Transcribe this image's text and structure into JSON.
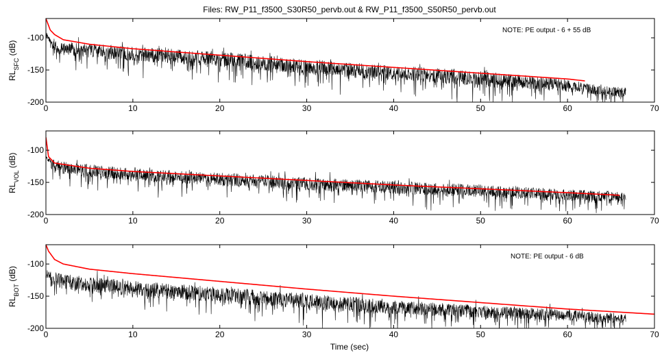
{
  "figure": {
    "title": "Files: RW_P11_f3500_S30R50_pervb.out & RW_P11_f3500_S50R50_pervb.out",
    "xlabel": "Time (sec)"
  },
  "colors": {
    "noisy_series": "#000000",
    "smooth_series": "#ff0000",
    "axes": "#000000",
    "background": "#ffffff"
  },
  "chart_data": [
    {
      "type": "line",
      "ylabel_main": "RL",
      "ylabel_sub": "SFC",
      "ylabel_unit": "(dB)",
      "note": "NOTE: PE output - 6 + 55 dB",
      "xlim": [
        0,
        70
      ],
      "ylim": [
        -200,
        -70
      ],
      "xticks": [
        "0",
        "10",
        "20",
        "30",
        "40",
        "50",
        "60",
        "70"
      ],
      "yticks": [
        "-100",
        "-150",
        "-200"
      ],
      "series": [
        {
          "color": "#ff0000",
          "x": [
            0,
            0.5,
            1,
            2,
            5,
            10,
            20,
            30,
            40,
            50,
            60,
            62
          ],
          "y": [
            -70,
            -88,
            -95,
            -103,
            -110,
            -117,
            -127,
            -137,
            -146,
            -155,
            -164,
            -167
          ]
        },
        {
          "color": "#000000",
          "x_end": 66.7,
          "envelope_x": [
            0,
            0.5,
            1,
            5,
            10,
            20,
            30,
            40,
            50,
            60,
            62,
            64,
            66.7
          ],
          "envelope_mean": [
            -100,
            -110,
            -115,
            -120,
            -125,
            -133,
            -145,
            -155,
            -163,
            -174,
            -178,
            -183,
            -185
          ],
          "envelope_spread": [
            10,
            10,
            10,
            11,
            11,
            12,
            12,
            12,
            12,
            10,
            8,
            8,
            8
          ]
        }
      ]
    },
    {
      "type": "line",
      "ylabel_main": "RL",
      "ylabel_sub": "VOL",
      "ylabel_unit": "(dB)",
      "note": "",
      "xlim": [
        0,
        70
      ],
      "ylim": [
        -200,
        -70
      ],
      "xticks": [
        "0",
        "10",
        "20",
        "30",
        "40",
        "50",
        "60",
        "70"
      ],
      "yticks": [
        "-100",
        "-150",
        "-200"
      ],
      "series": [
        {
          "color": "#ff0000",
          "x": [
            0,
            0.3,
            1,
            5,
            10,
            20,
            30,
            40,
            50,
            60,
            66
          ],
          "y": [
            -80,
            -110,
            -120,
            -128,
            -133,
            -140,
            -147,
            -154,
            -160,
            -166,
            -170
          ]
        },
        {
          "color": "#000000",
          "x_end": 66.7,
          "envelope_x": [
            0,
            1,
            5,
            10,
            20,
            30,
            40,
            50,
            60,
            66.7
          ],
          "envelope_mean": [
            -120,
            -125,
            -132,
            -138,
            -145,
            -152,
            -158,
            -163,
            -170,
            -172
          ],
          "envelope_spread": [
            10,
            10,
            10,
            10,
            10,
            10,
            10,
            10,
            9,
            8
          ]
        }
      ]
    },
    {
      "type": "line",
      "ylabel_main": "RL",
      "ylabel_sub": "BOT",
      "ylabel_unit": "(dB)",
      "note": "NOTE: PE output - 6 dB",
      "xlim": [
        0,
        70
      ],
      "ylim": [
        -200,
        -70
      ],
      "xticks": [
        "0",
        "10",
        "20",
        "30",
        "40",
        "50",
        "60",
        "70"
      ],
      "yticks": [
        "-100",
        "-150",
        "-200"
      ],
      "series": [
        {
          "color": "#ff0000",
          "x": [
            0,
            0.3,
            1,
            2,
            5,
            10,
            20,
            30,
            40,
            50,
            60,
            70
          ],
          "y": [
            -70,
            -80,
            -93,
            -100,
            -108,
            -115,
            -127,
            -139,
            -150,
            -160,
            -170,
            -178
          ]
        },
        {
          "color": "#000000",
          "x_end": 66.7,
          "envelope_x": [
            0,
            1,
            5,
            10,
            20,
            30,
            40,
            50,
            60,
            66.7
          ],
          "envelope_mean": [
            -120,
            -125,
            -132,
            -138,
            -148,
            -158,
            -167,
            -174,
            -180,
            -185
          ],
          "envelope_spread": [
            12,
            12,
            12,
            12,
            12,
            12,
            11,
            10,
            9,
            8
          ]
        }
      ]
    }
  ]
}
